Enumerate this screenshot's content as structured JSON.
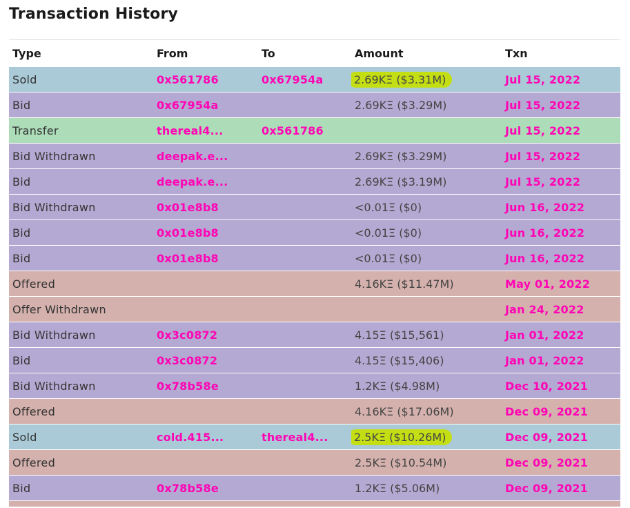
{
  "title": "Transaction History",
  "columns": [
    "Type",
    "From",
    "To",
    "Amount",
    "Txn"
  ],
  "colors": {
    "sold": "#a9cad6",
    "bid": "#b4a9d2",
    "transfer": "#acdcb8",
    "offered": "#d4b1ad",
    "highlight": "#c3df14",
    "link": "#ff04b4"
  },
  "rows": [
    {
      "type": "Sold",
      "from": "0x561786",
      "to": "0x67954a",
      "amount": "2.69KΞ ($3.31M)",
      "txn": "Jul 15, 2022",
      "kind": "sold",
      "highlight": true
    },
    {
      "type": "Bid",
      "from": "0x67954a",
      "to": "",
      "amount": "2.69KΞ ($3.29M)",
      "txn": "Jul 15, 2022",
      "kind": "bid",
      "highlight": false
    },
    {
      "type": "Transfer",
      "from": "thereal4...",
      "to": "0x561786",
      "amount": "",
      "txn": "Jul 15, 2022",
      "kind": "transfer",
      "highlight": false
    },
    {
      "type": "Bid Withdrawn",
      "from": "deepak.e...",
      "to": "",
      "amount": "2.69KΞ ($3.29M)",
      "txn": "Jul 15, 2022",
      "kind": "bid",
      "highlight": false
    },
    {
      "type": "Bid",
      "from": "deepak.e...",
      "to": "",
      "amount": "2.69KΞ ($3.19M)",
      "txn": "Jul 15, 2022",
      "kind": "bid",
      "highlight": false
    },
    {
      "type": "Bid Withdrawn",
      "from": "0x01e8b8",
      "to": "",
      "amount": "<0.01Ξ ($0)",
      "txn": "Jun 16, 2022",
      "kind": "bid",
      "highlight": false
    },
    {
      "type": "Bid",
      "from": "0x01e8b8",
      "to": "",
      "amount": "<0.01Ξ ($0)",
      "txn": "Jun 16, 2022",
      "kind": "bid",
      "highlight": false
    },
    {
      "type": "Bid",
      "from": "0x01e8b8",
      "to": "",
      "amount": "<0.01Ξ ($0)",
      "txn": "Jun 16, 2022",
      "kind": "bid",
      "highlight": false
    },
    {
      "type": "Offered",
      "from": "",
      "to": "",
      "amount": "4.16KΞ ($11.47M)",
      "txn": "May 01, 2022",
      "kind": "offered",
      "highlight": false
    },
    {
      "type": "Offer Withdrawn",
      "from": "",
      "to": "",
      "amount": "",
      "txn": "Jan 24, 2022",
      "kind": "offered",
      "highlight": false
    },
    {
      "type": "Bid Withdrawn",
      "from": "0x3c0872",
      "to": "",
      "amount": "4.15Ξ ($15,561)",
      "txn": "Jan 01, 2022",
      "kind": "bid",
      "highlight": false
    },
    {
      "type": "Bid",
      "from": "0x3c0872",
      "to": "",
      "amount": "4.15Ξ ($15,406)",
      "txn": "Jan 01, 2022",
      "kind": "bid",
      "highlight": false
    },
    {
      "type": "Bid Withdrawn",
      "from": "0x78b58e",
      "to": "",
      "amount": "1.2KΞ ($4.98M)",
      "txn": "Dec 10, 2021",
      "kind": "bid",
      "highlight": false
    },
    {
      "type": "Offered",
      "from": "",
      "to": "",
      "amount": "4.16KΞ ($17.06M)",
      "txn": "Dec 09, 2021",
      "kind": "offered",
      "highlight": false
    },
    {
      "type": "Sold",
      "from": "cold.415...",
      "to": "thereal4...",
      "amount": "2.5KΞ ($10.26M)",
      "txn": "Dec 09, 2021",
      "kind": "sold",
      "highlight": true
    },
    {
      "type": "Offered",
      "from": "",
      "to": "",
      "amount": "2.5KΞ ($10.54M)",
      "txn": "Dec 09, 2021",
      "kind": "offered",
      "highlight": false
    },
    {
      "type": "Bid",
      "from": "0x78b58e",
      "to": "",
      "amount": "1.2KΞ ($5.06M)",
      "txn": "Dec 09, 2021",
      "kind": "bid",
      "highlight": false
    }
  ]
}
